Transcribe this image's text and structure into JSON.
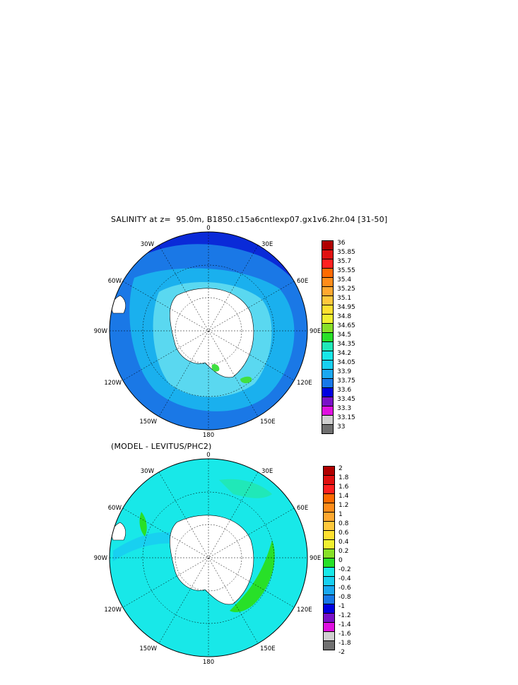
{
  "panel1": {
    "title": "SALINITY at z=  95.0m, B1850.c15a6cntlexp07.gx1v6.2hr.04 [31-50]",
    "lon_labels": {
      "top": "0",
      "bottom": "180",
      "tl": "30W",
      "tr": "30E",
      "ul": "60W",
      "ur": "60E",
      "ml": "90W",
      "mr": "90E",
      "ll": "120W",
      "lr": "120E",
      "bl": "150W",
      "br": "150E"
    },
    "colorbar": {
      "labels": [
        "36",
        "35.85",
        "35.7",
        "35.55",
        "35.4",
        "35.25",
        "35.1",
        "34.95",
        "34.8",
        "34.65",
        "34.5",
        "34.35",
        "34.2",
        "34.05",
        "33.9",
        "33.75",
        "33.6",
        "33.45",
        "33.3",
        "33.15",
        "33"
      ],
      "colors": [
        "#b00000",
        "#e01010",
        "#ff2020",
        "#ff6a00",
        "#ff8c1a",
        "#ffa830",
        "#ffc83c",
        "#ffe030",
        "#f0f030",
        "#88e028",
        "#28e028",
        "#20e8b8",
        "#18e8e8",
        "#18d0f0",
        "#1aa8f0",
        "#1878e8",
        "#0000e0",
        "#7a10c8",
        "#e010e0",
        "#d0d0d0",
        "#707070"
      ]
    }
  },
  "panel2": {
    "title": "(MODEL - LEVITUS/PHC2)",
    "lon_labels": {
      "top": "0",
      "bottom": "180",
      "tl": "30W",
      "tr": "30E",
      "ul": "60W",
      "ur": "60E",
      "ml": "90W",
      "mr": "90E",
      "ll": "120W",
      "lr": "120E",
      "bl": "150W",
      "br": "150E"
    },
    "colorbar": {
      "labels": [
        "2",
        "1.8",
        "1.6",
        "1.4",
        "1.2",
        "1",
        "0.8",
        "0.6",
        "0.4",
        "0.2",
        "0",
        "-0.2",
        "-0.4",
        "-0.6",
        "-0.8",
        "-1",
        "-1.2",
        "-1.4",
        "-1.6",
        "-1.8",
        "-2"
      ],
      "colors": [
        "#b00000",
        "#e01010",
        "#ff2020",
        "#ff6a00",
        "#ff8c1a",
        "#ffa830",
        "#ffc83c",
        "#ffe030",
        "#f0f030",
        "#88e028",
        "#28e028",
        "#18e8e8",
        "#18d0f0",
        "#1aa8f0",
        "#1878e8",
        "#0000e0",
        "#7a10c8",
        "#e010e0",
        "#d0d0d0",
        "#707070"
      ]
    }
  }
}
